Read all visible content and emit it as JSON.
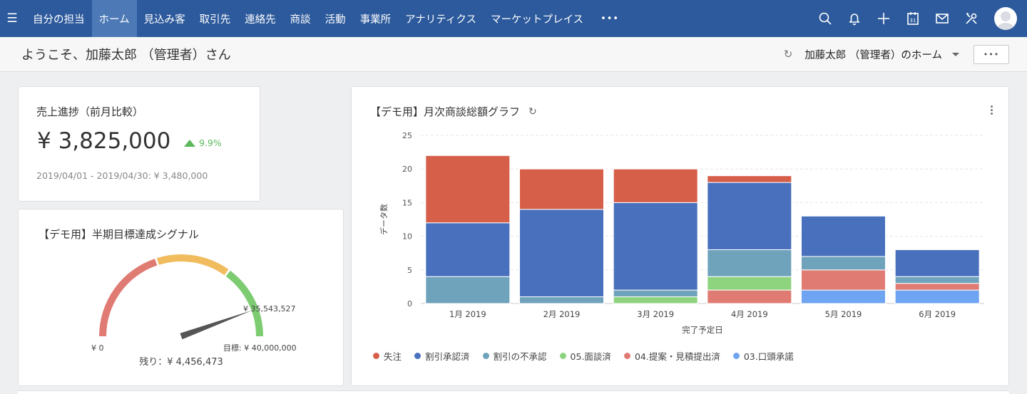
{
  "nav": {
    "items": [
      {
        "label": "自分の担当",
        "active": false
      },
      {
        "label": "ホーム",
        "active": true
      },
      {
        "label": "見込み客",
        "active": false
      },
      {
        "label": "取引先",
        "active": false
      },
      {
        "label": "連絡先",
        "active": false
      },
      {
        "label": "商談",
        "active": false
      },
      {
        "label": "活動",
        "active": false
      },
      {
        "label": "事業所",
        "active": false
      },
      {
        "label": "アナリティクス",
        "active": false
      },
      {
        "label": "マーケットプレイス",
        "active": false
      }
    ],
    "more_label": "•••",
    "icons": [
      "search-icon",
      "bell-icon",
      "plus-icon",
      "calendar-icon",
      "mail-icon",
      "settings-icon"
    ],
    "calendar_day": "31"
  },
  "subheader": {
    "welcome": "ようこそ、加藤太郎 （管理者）さん",
    "home_label": "加藤太郎 （管理者）のホーム",
    "more_label": "•••"
  },
  "sales_card": {
    "title": "売上進捗（前月比較）",
    "value": "¥ 3,825,000",
    "delta": "9.9%",
    "previous": "2019/04/01 - 2019/04/30: ¥ 3,480,000"
  },
  "gauge_card": {
    "title": "【デモ用】半期目標達成シグナル",
    "min_label": "¥ 0",
    "target_label": "目標: ¥ 40,000,000",
    "current_label": "¥ 35,543,527",
    "remaining_label": "残り：¥ 4,456,473",
    "min": 0,
    "max": 40000000,
    "current": 35543527,
    "bands": [
      {
        "from": 0,
        "to": 0.4,
        "color": "#e07b74"
      },
      {
        "from": 0.4,
        "to": 0.7,
        "color": "#f0bc5e"
      },
      {
        "from": 0.7,
        "to": 1.0,
        "color": "#7dcc72"
      }
    ]
  },
  "chart_card": {
    "title": "【デモ用】月次商談総額グラフ"
  },
  "chart_data": {
    "type": "bar",
    "stacked": true,
    "categories": [
      "1月 2019",
      "2月 2019",
      "3月 2019",
      "4月 2019",
      "5月 2019",
      "6月 2019"
    ],
    "xlabel": "完了予定日",
    "ylabel": "データ数",
    "ylim": [
      0,
      25
    ],
    "yticks": [
      0,
      5,
      10,
      15,
      20,
      25
    ],
    "grid": true,
    "legend_position": "bottom",
    "series": [
      {
        "name": "03.口頭承諾",
        "color": "#6fa4f2",
        "values": [
          0,
          0,
          0,
          0,
          2,
          2
        ]
      },
      {
        "name": "04.提案・見積提出済",
        "color": "#e07b74",
        "values": [
          0,
          0,
          0,
          2,
          3,
          1
        ]
      },
      {
        "name": "05.面談済",
        "color": "#8ed47e",
        "values": [
          0,
          0,
          1,
          2,
          0,
          0
        ]
      },
      {
        "name": "割引の不承認",
        "color": "#6fa2bb",
        "values": [
          4,
          1,
          1,
          4,
          2,
          1
        ]
      },
      {
        "name": "割引承認済",
        "color": "#4870bd",
        "values": [
          8,
          13,
          13,
          10,
          6,
          4
        ]
      },
      {
        "name": "失注",
        "color": "#d65f4a",
        "values": [
          10,
          6,
          5,
          1,
          0,
          0
        ]
      }
    ],
    "legend_order": [
      "失注",
      "割引承認済",
      "割引の不承認",
      "05.面談済",
      "04.提案・見積提出済",
      "03.口頭承諾"
    ]
  }
}
